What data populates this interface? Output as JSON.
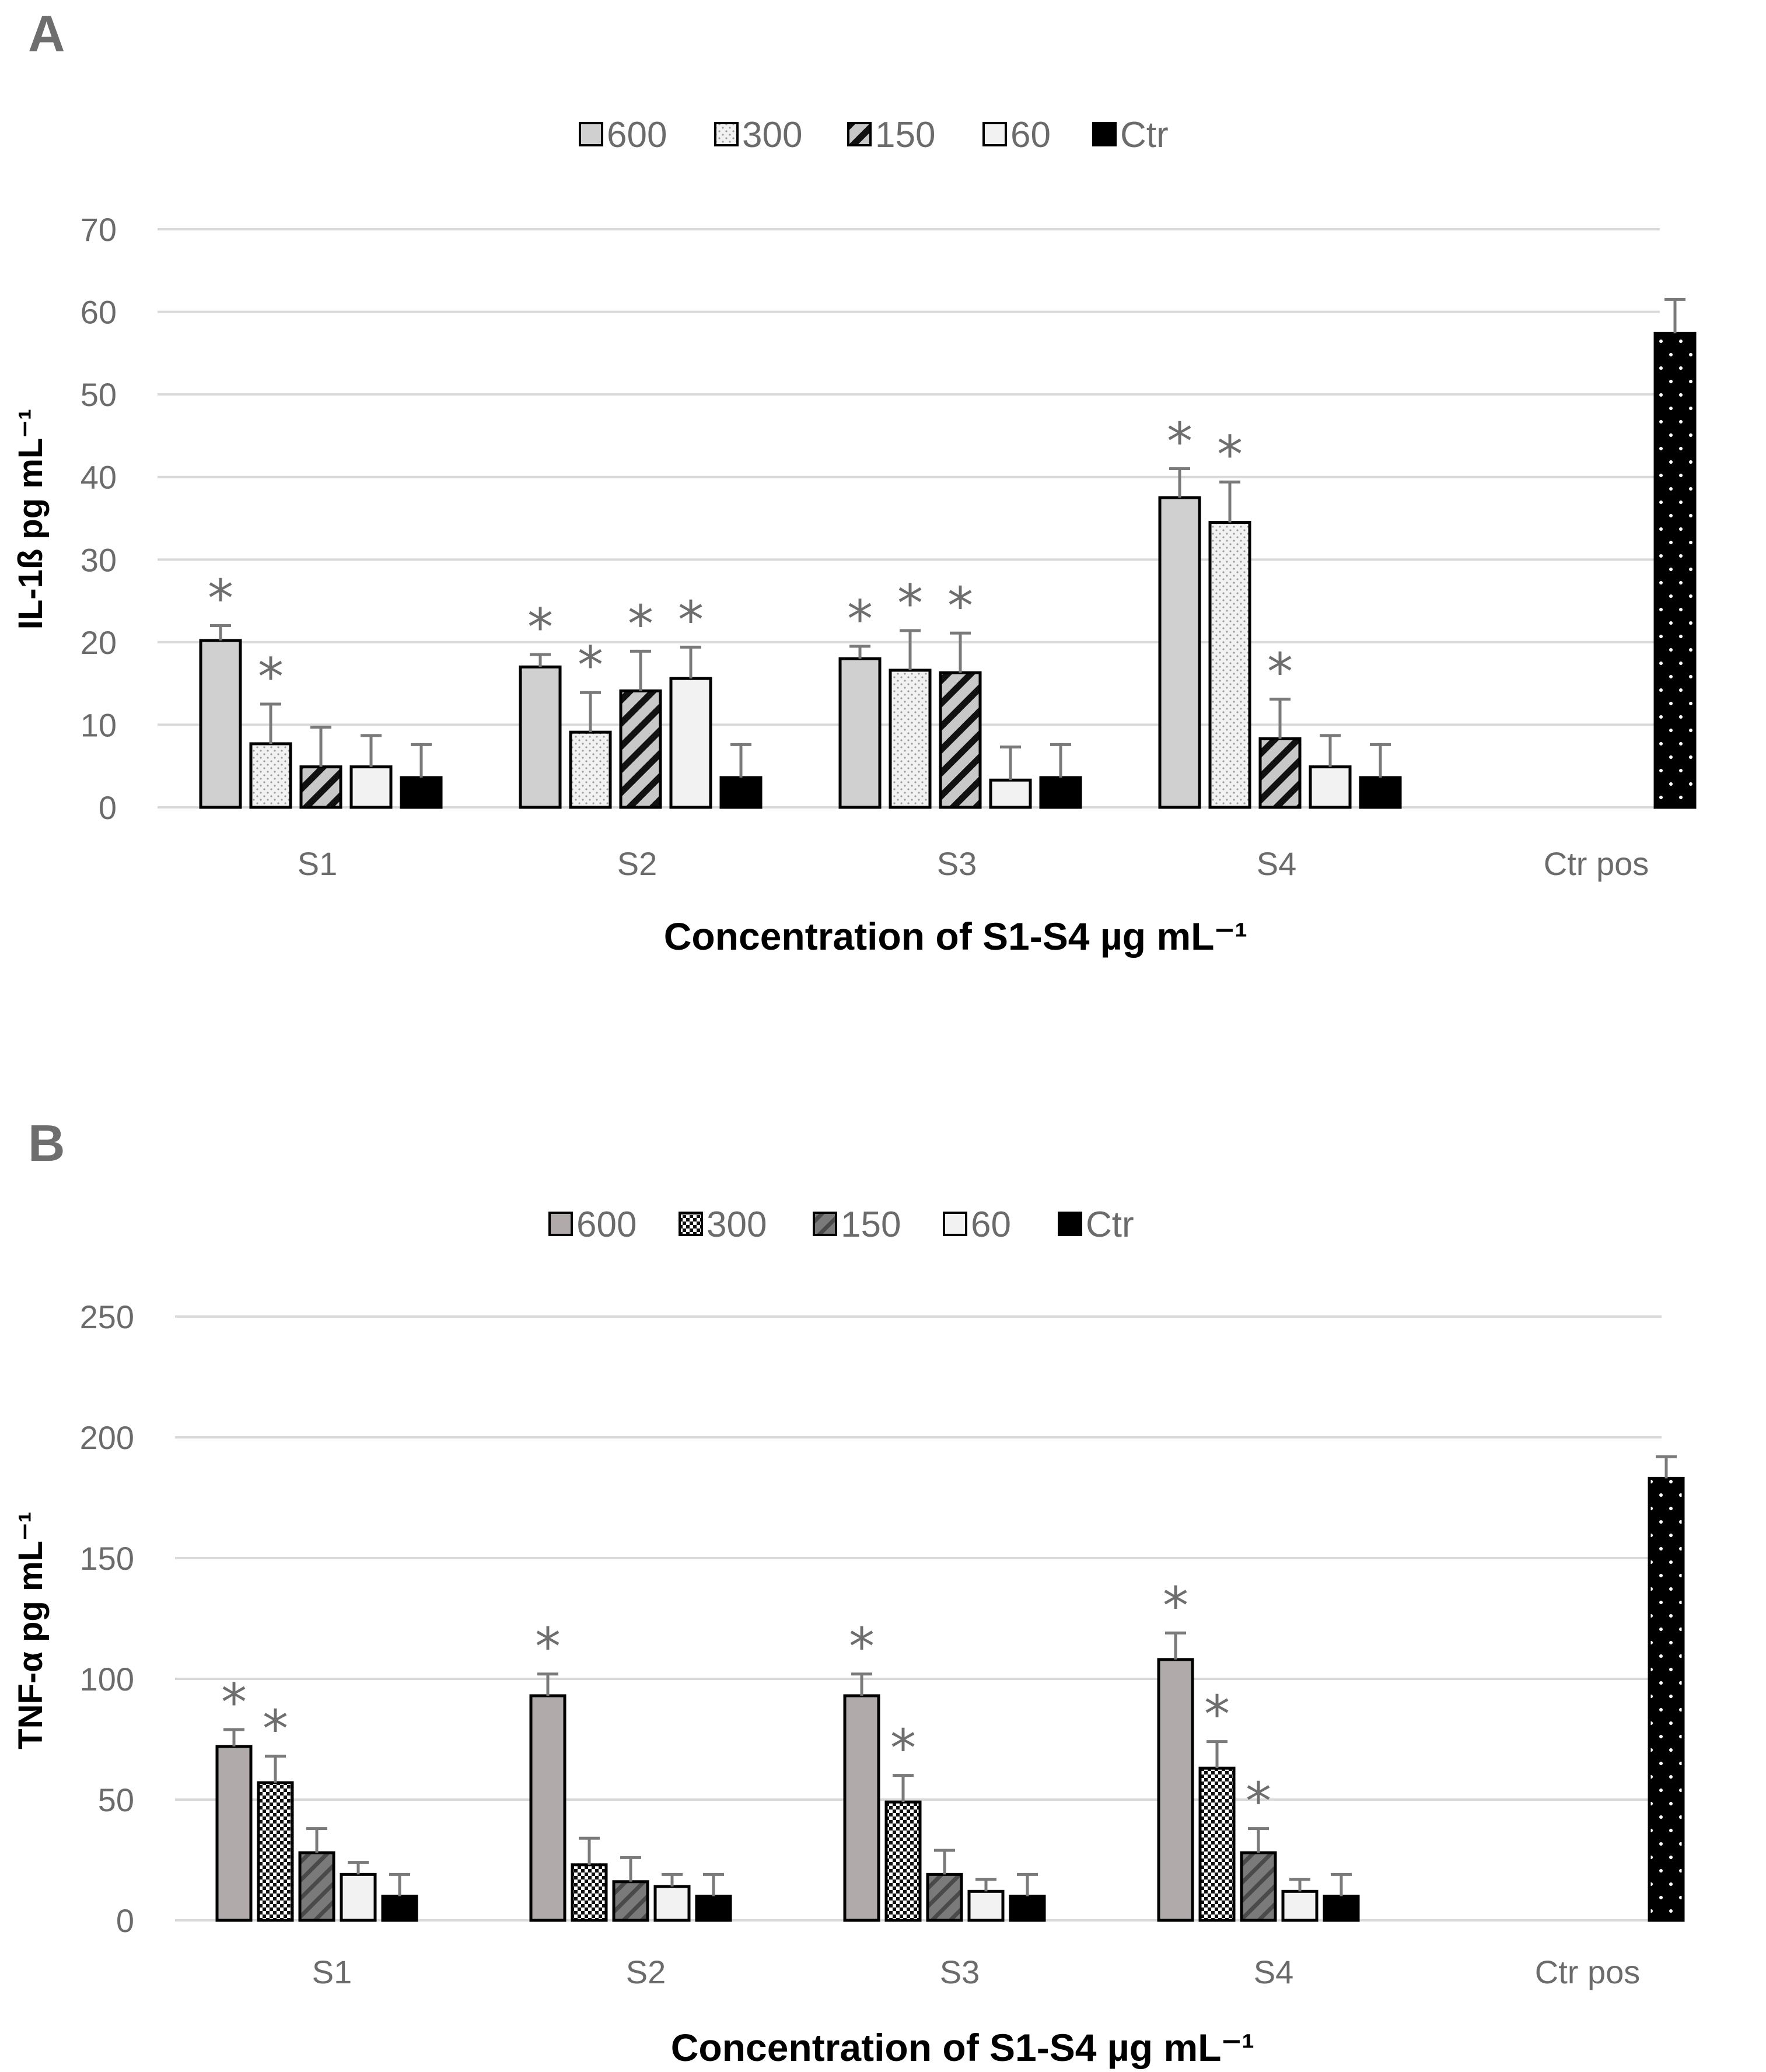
{
  "colors": {
    "grid": "#d9d9d9",
    "tick_text": "#6b6b6b",
    "panel_letter": "#6e6e6e",
    "star": "#6e6e6e",
    "error_bar": "#7a7a7a",
    "bar_stroke": "#000000"
  },
  "chart_data": [
    {
      "panel": "A",
      "type": "bar",
      "title": "",
      "xlabel": "Concentration of S1-S4 µg mL⁻¹",
      "ylabel": "IL-1ß pg mL⁻¹",
      "categories": [
        "S1",
        "S2",
        "S3",
        "S4",
        "Ctr pos"
      ],
      "ylim": [
        0,
        70
      ],
      "yticks": [
        0,
        10,
        20,
        30,
        40,
        50,
        60,
        70
      ],
      "grid": true,
      "legend_position": "top-center",
      "significance_marker": "*",
      "series": [
        {
          "name": "600",
          "pattern": "solid-lightgray",
          "values": [
            20.2,
            17.0,
            18.0,
            37.5,
            null
          ],
          "errors": [
            1.8,
            1.5,
            1.5,
            3.5,
            null
          ],
          "significant": [
            true,
            true,
            true,
            true,
            false
          ]
        },
        {
          "name": "300",
          "pattern": "dotted-light",
          "values": [
            7.7,
            9.1,
            16.6,
            34.5,
            null
          ],
          "errors": [
            4.8,
            4.8,
            4.8,
            4.9,
            null
          ],
          "significant": [
            true,
            true,
            true,
            true,
            false
          ]
        },
        {
          "name": "150",
          "pattern": "hatched-gray",
          "values": [
            4.9,
            14.1,
            16.3,
            8.3,
            null
          ],
          "errors": [
            4.8,
            4.8,
            4.8,
            4.8,
            null
          ],
          "significant": [
            false,
            true,
            true,
            true,
            false
          ]
        },
        {
          "name": "60",
          "pattern": "solid-white",
          "values": [
            4.9,
            15.6,
            3.3,
            4.9,
            null
          ],
          "errors": [
            3.8,
            3.8,
            4.0,
            3.8,
            null
          ],
          "significant": [
            false,
            true,
            false,
            false,
            false
          ]
        },
        {
          "name": "Ctr",
          "pattern": "solid-black",
          "values": [
            3.6,
            3.6,
            3.6,
            3.6,
            null
          ],
          "errors": [
            4.0,
            4.0,
            4.0,
            4.0,
            null
          ],
          "significant": [
            false,
            false,
            false,
            false,
            false
          ]
        },
        {
          "name": "Ctr pos",
          "pattern": "black-dotted",
          "in_legend": false,
          "values": [
            null,
            null,
            null,
            null,
            57.4
          ],
          "errors": [
            null,
            null,
            null,
            null,
            4.1
          ],
          "significant": [
            false,
            false,
            false,
            false,
            false
          ]
        }
      ]
    },
    {
      "panel": "B",
      "type": "bar",
      "title": "",
      "xlabel": "Concentration of S1-S4  µg mL⁻¹",
      "ylabel": "TNF-α pg mL⁻¹",
      "categories": [
        "S1",
        "S2",
        "S3",
        "S4",
        "Ctr pos"
      ],
      "ylim": [
        0,
        250
      ],
      "yticks": [
        0,
        50,
        100,
        150,
        200,
        250
      ],
      "grid": true,
      "legend_position": "top-center",
      "significance_marker": "*",
      "series": [
        {
          "name": "600",
          "pattern": "solid-gray",
          "values": [
            72,
            93,
            93,
            108,
            null
          ],
          "errors": [
            7,
            9,
            9,
            11,
            null
          ],
          "significant": [
            true,
            true,
            true,
            true,
            false
          ]
        },
        {
          "name": "300",
          "pattern": "checker",
          "values": [
            57,
            23,
            49,
            63,
            null
          ],
          "errors": [
            11,
            11,
            11,
            11,
            null
          ],
          "significant": [
            true,
            false,
            true,
            true,
            false
          ]
        },
        {
          "name": "150",
          "pattern": "hatched-dark",
          "values": [
            28,
            16,
            19,
            28,
            null
          ],
          "errors": [
            10,
            10,
            10,
            10,
            null
          ],
          "significant": [
            false,
            false,
            false,
            true,
            false
          ]
        },
        {
          "name": "60",
          "pattern": "solid-white",
          "values": [
            19,
            14,
            12,
            12,
            null
          ],
          "errors": [
            5,
            5,
            5,
            5,
            null
          ],
          "significant": [
            false,
            false,
            false,
            false,
            false
          ]
        },
        {
          "name": "Ctr",
          "pattern": "solid-black",
          "values": [
            10,
            10,
            10,
            10,
            null
          ],
          "errors": [
            9,
            9,
            9,
            9,
            null
          ],
          "significant": [
            false,
            false,
            false,
            false,
            false
          ]
        },
        {
          "name": "Ctr pos",
          "pattern": "black-dotted",
          "in_legend": false,
          "values": [
            null,
            null,
            null,
            null,
            183
          ],
          "errors": [
            null,
            null,
            null,
            null,
            9
          ],
          "significant": [
            false,
            false,
            false,
            false,
            false
          ]
        }
      ]
    }
  ]
}
